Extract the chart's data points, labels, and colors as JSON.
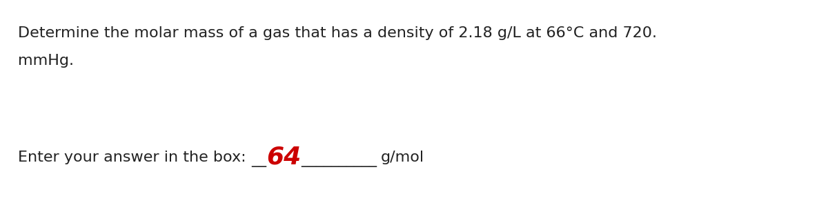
{
  "line1": "Determine the molar mass of a gas that has a density of 2.18 g/L at 66°C and 720.",
  "line2": "mmHg.",
  "prompt_text": "Enter your answer in the box: ",
  "answer": "64",
  "suffix": "g/mol",
  "bg_color": "#ffffff",
  "text_color": "#222222",
  "answer_color": "#cc0000",
  "font_size_main": 16,
  "font_size_answer": 26,
  "fig_width": 12.0,
  "fig_height": 3.07,
  "dpi": 100
}
